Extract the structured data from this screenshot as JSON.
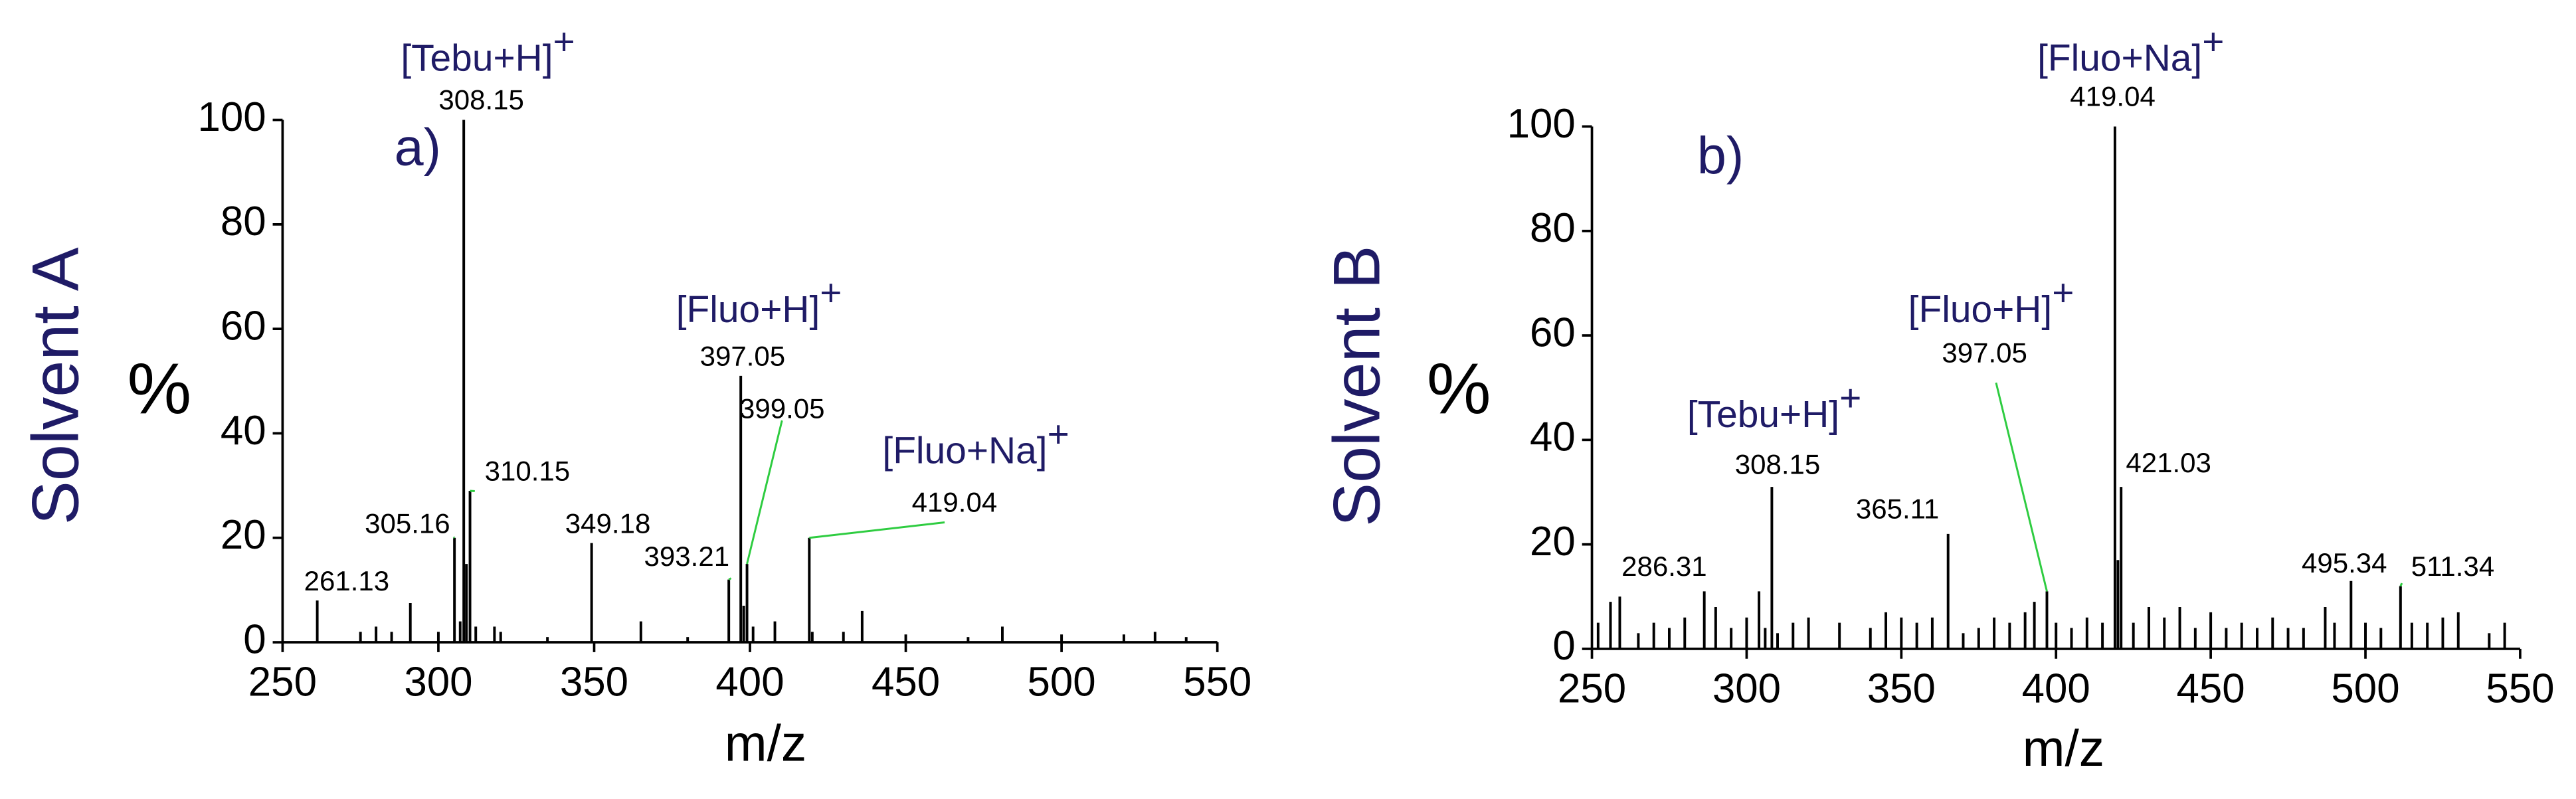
{
  "chart_data": [
    {
      "type": "stem",
      "panel_label": "a)",
      "side_label": "Solvent A",
      "ylabel": "%",
      "xlabel": "m/z",
      "x": [
        261.13,
        275,
        280,
        285,
        291,
        300,
        305.16,
        307,
        308.15,
        309,
        310.15,
        312,
        318,
        320,
        335,
        349.18,
        365,
        380,
        393.21,
        397.05,
        398,
        399.05,
        401,
        408,
        419.04,
        420,
        430,
        436,
        450,
        470,
        481,
        500,
        520,
        530,
        540
      ],
      "values": [
        8,
        2,
        3,
        2,
        7.5,
        2,
        20,
        4,
        100,
        15,
        29,
        3,
        3,
        2,
        1,
        19,
        4,
        1,
        12,
        51,
        7,
        15,
        3,
        4,
        20,
        2,
        2,
        6,
        1.5,
        1,
        3,
        1.5,
        1.5,
        2,
        1
      ],
      "annotations": [
        {
          "text": "[Tebu+H]",
          "charge": "+"
        },
        {
          "text": "[Fluo+H]",
          "charge": "+"
        },
        {
          "text": "[Fluo+Na]",
          "charge": "+"
        }
      ],
      "xlim": [
        250,
        550
      ],
      "xticks": [
        250,
        300,
        350,
        400,
        450,
        500,
        550
      ],
      "ylim": [
        0,
        100
      ],
      "yticks": [
        0,
        20,
        40,
        60,
        80,
        100
      ],
      "color": "#000000",
      "label_color": "#1f1b66",
      "leader_color": "#2ecc40"
    },
    {
      "type": "stem",
      "panel_label": "b)",
      "side_label": "Solvent B",
      "ylabel": "%",
      "xlabel": "m/z",
      "x": [
        252,
        256,
        259,
        265,
        270,
        275,
        280,
        286.31,
        290,
        295,
        300,
        304,
        306,
        308.15,
        310,
        315,
        320,
        330,
        340,
        345,
        350,
        355,
        360,
        365.11,
        370,
        375,
        380,
        385,
        390,
        393,
        397.05,
        400,
        405,
        410,
        415,
        419.04,
        420,
        421.03,
        425,
        430,
        435,
        440,
        445,
        450,
        455,
        460,
        465,
        470,
        475,
        480,
        487,
        490,
        495.34,
        500,
        505,
        511.34,
        515,
        520,
        525,
        530,
        540,
        545
      ],
      "values": [
        5,
        9,
        10,
        3,
        5,
        4,
        6,
        11,
        8,
        4,
        6,
        11,
        4,
        31,
        3,
        5,
        6,
        5,
        4,
        7,
        6,
        5,
        6,
        22,
        3,
        4,
        6,
        5,
        7,
        9,
        11,
        5,
        4,
        6,
        5,
        100,
        17,
        31,
        5,
        8,
        6,
        8,
        4,
        7,
        4,
        5,
        4,
        6,
        4,
        4,
        8,
        5,
        13,
        5,
        4,
        12,
        5,
        5,
        6,
        7,
        3,
        5
      ],
      "annotations": [
        {
          "text": "[Tebu+H]",
          "charge": "+"
        },
        {
          "text": "[Fluo+H]",
          "charge": "+"
        },
        {
          "text": "[Fluo+Na]",
          "charge": "+"
        }
      ],
      "xlim": [
        250,
        550
      ],
      "xticks": [
        250,
        300,
        350,
        400,
        450,
        500,
        550
      ],
      "ylim": [
        0,
        100
      ],
      "yticks": [
        0,
        20,
        40,
        60,
        80,
        100
      ],
      "color": "#000000",
      "label_color": "#1f1b66",
      "leader_color": "#2ecc40"
    }
  ]
}
